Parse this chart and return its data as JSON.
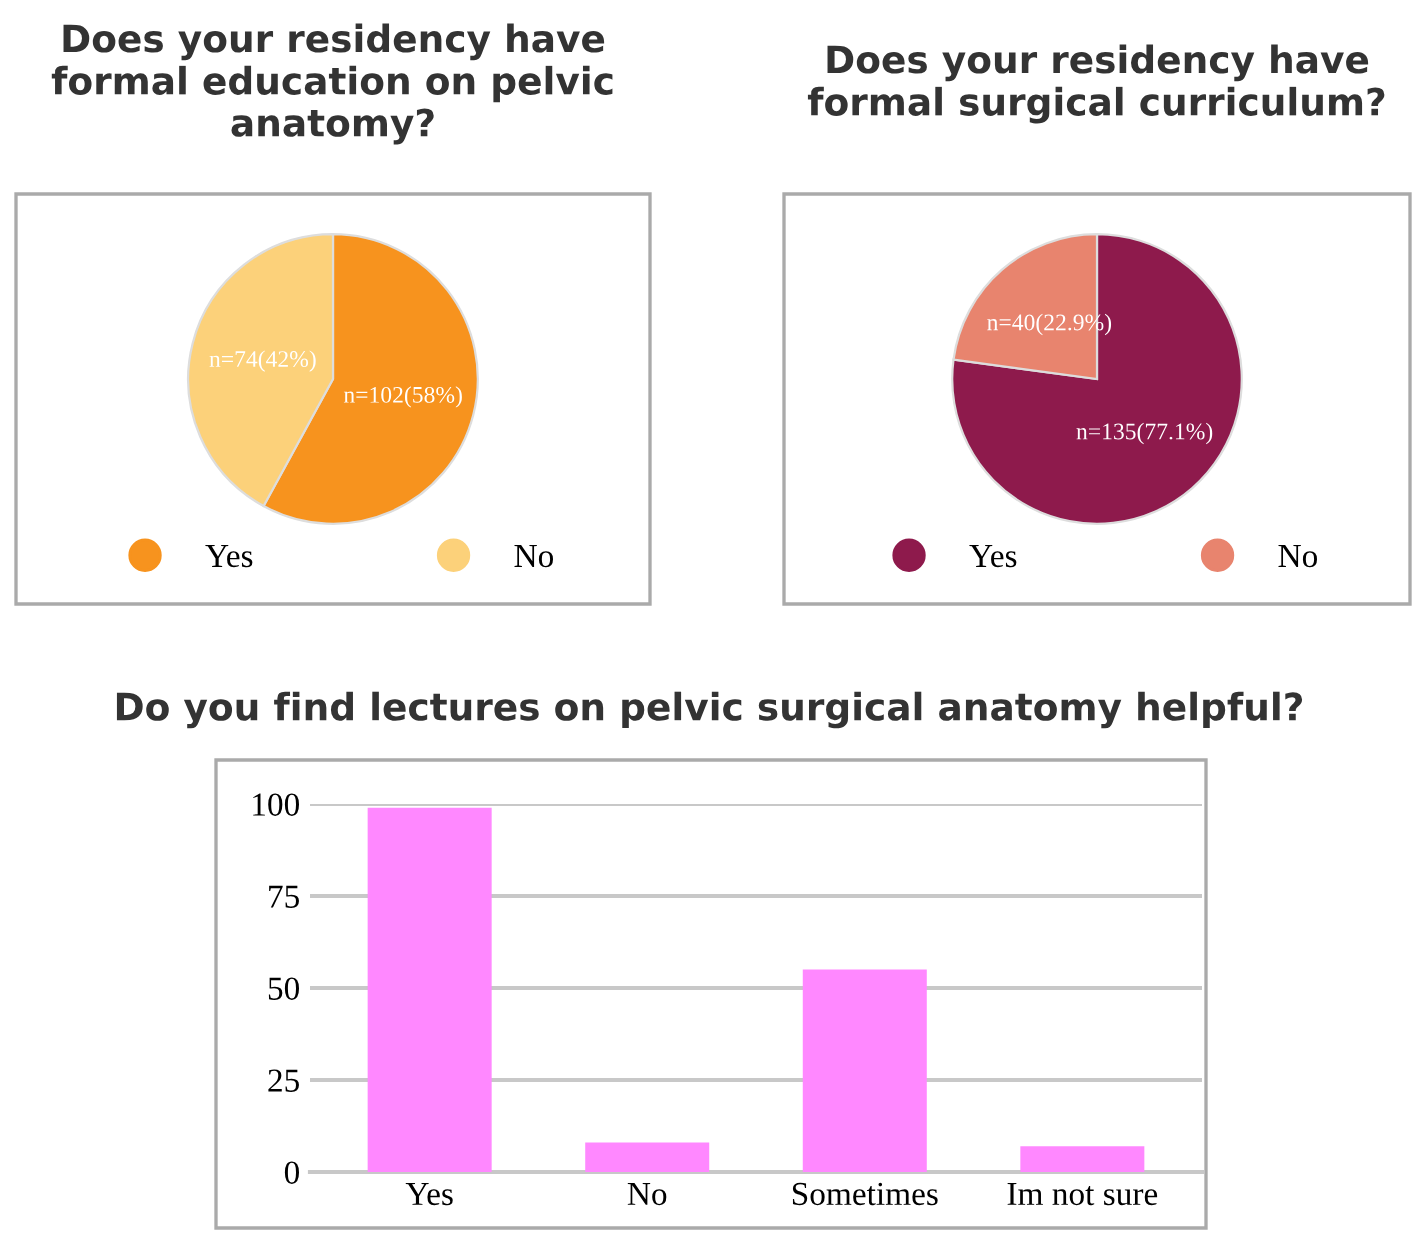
{
  "chart_data": [
    {
      "type": "pie",
      "title": "Does your residency have formal education on pelvic anatomy?",
      "categories": [
        "Yes",
        "No"
      ],
      "values": [
        102,
        74
      ],
      "colors": [
        "#f7931e",
        "#fcd17a"
      ],
      "value_labels": [
        "n=102(58%)",
        "n=74(42%)"
      ],
      "legend": "bottom"
    },
    {
      "type": "pie",
      "title": "Does your residency have formal surgical curriculum?",
      "categories": [
        "Yes",
        "No"
      ],
      "values": [
        135,
        40
      ],
      "colors": [
        "#8e1a4c",
        "#e8846e"
      ],
      "value_labels": [
        "n=135(77.1%)",
        "n=40(22.9%)"
      ],
      "legend": "bottom"
    },
    {
      "type": "bar",
      "title": "Do you find lectures on pelvic surgical anatomy helpful?",
      "categories": [
        "Yes",
        "No",
        "Sometimes",
        "Im not sure"
      ],
      "values": [
        99,
        8,
        55,
        7
      ],
      "color": "#ff88ff",
      "ylim": [
        0,
        100
      ],
      "yticks": [
        0,
        25,
        50,
        75,
        100
      ],
      "grid": "y"
    }
  ]
}
